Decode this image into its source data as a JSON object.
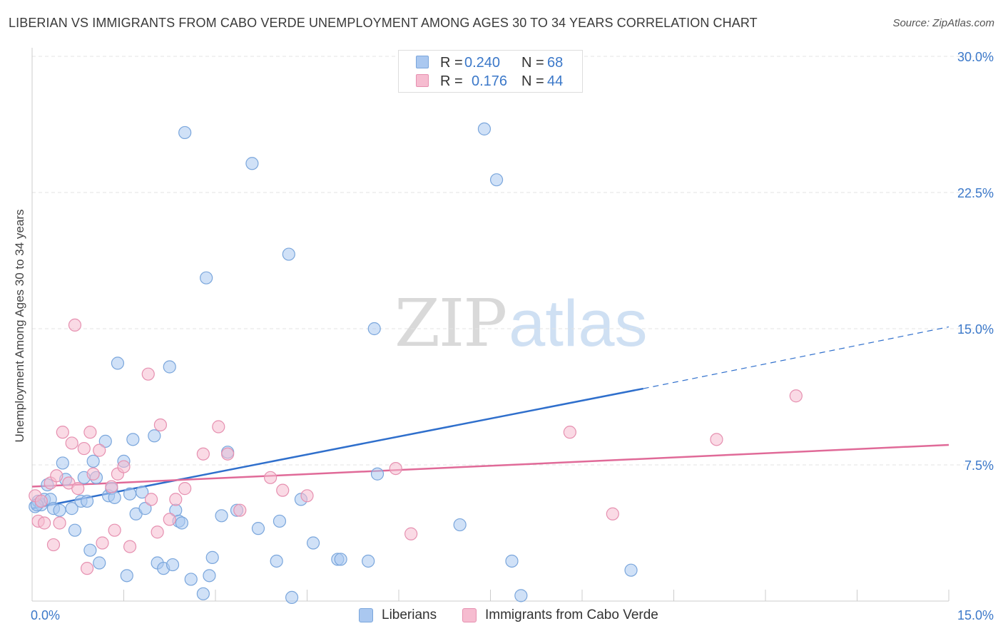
{
  "title": "LIBERIAN VS IMMIGRANTS FROM CABO VERDE UNEMPLOYMENT AMONG AGES 30 TO 34 YEARS CORRELATION CHART",
  "source": "Source: ZipAtlas.com",
  "watermark": {
    "zip": "ZIP",
    "atlas": "atlas"
  },
  "legend": {
    "r_label": "R =",
    "n_label": "N =",
    "rows": [
      {
        "r": "0.240",
        "n": "68"
      },
      {
        "r": "0.176",
        "n": "44"
      }
    ]
  },
  "colors": {
    "blue_fill": "#aac8f0",
    "blue_stroke": "#7aa6dc",
    "blue_line": "#2f6fcc",
    "pink_fill": "#f6bcd0",
    "pink_stroke": "#e690b0",
    "pink_line": "#e06a98",
    "axis_text": "#3b78c9",
    "grid": "#e3e3e3"
  },
  "chart_data": {
    "type": "scatter",
    "title": "LIBERIAN VS IMMIGRANTS FROM CABO VERDE UNEMPLOYMENT AMONG AGES 30 TO 34 YEARS CORRELATION CHART",
    "xlabel": "",
    "ylabel": "Unemployment Among Ages 30 to 34 years",
    "xlim": [
      0,
      15
    ],
    "ylim": [
      0,
      30
    ],
    "x_tick_labels": [
      "0.0%",
      "15.0%"
    ],
    "y_ticks": [
      7.5,
      15.0,
      22.5,
      30.0
    ],
    "y_tick_labels": [
      "7.5%",
      "15.0%",
      "22.5%",
      "30.0%"
    ],
    "grid": "horizontal dashed",
    "legend_position": "top-center",
    "series": [
      {
        "name": "Liberians",
        "R": 0.24,
        "N": 68,
        "trend": {
          "x0": 0,
          "y0": 5.1,
          "x1": 10.0,
          "y1": 11.7,
          "dashed_to_x": 15.0,
          "dashed_to_y": 15.1
        },
        "points": [
          [
            0.05,
            5.2
          ],
          [
            0.1,
            5.5
          ],
          [
            0.15,
            5.3
          ],
          [
            0.2,
            5.6
          ],
          [
            0.25,
            6.4
          ],
          [
            0.3,
            5.6
          ],
          [
            0.35,
            5.1
          ],
          [
            0.45,
            5.0
          ],
          [
            0.5,
            7.6
          ],
          [
            0.55,
            6.7
          ],
          [
            0.65,
            5.1
          ],
          [
            0.7,
            3.9
          ],
          [
            0.8,
            5.5
          ],
          [
            0.85,
            6.8
          ],
          [
            0.9,
            5.5
          ],
          [
            0.95,
            2.8
          ],
          [
            1.0,
            7.7
          ],
          [
            1.05,
            6.8
          ],
          [
            1.1,
            2.1
          ],
          [
            1.2,
            8.8
          ],
          [
            1.25,
            5.8
          ],
          [
            1.3,
            6.2
          ],
          [
            1.35,
            5.7
          ],
          [
            1.4,
            13.1
          ],
          [
            1.5,
            7.7
          ],
          [
            1.55,
            1.4
          ],
          [
            1.65,
            8.9
          ],
          [
            1.7,
            4.8
          ],
          [
            1.8,
            6.0
          ],
          [
            1.85,
            5.1
          ],
          [
            2.0,
            9.1
          ],
          [
            2.05,
            2.1
          ],
          [
            2.15,
            1.8
          ],
          [
            2.25,
            12.9
          ],
          [
            2.3,
            2.0
          ],
          [
            2.35,
            5.0
          ],
          [
            2.4,
            4.4
          ],
          [
            2.45,
            4.3
          ],
          [
            2.5,
            25.8
          ],
          [
            2.6,
            1.2
          ],
          [
            2.8,
            0.4
          ],
          [
            2.85,
            17.8
          ],
          [
            2.9,
            1.4
          ],
          [
            2.95,
            2.4
          ],
          [
            3.1,
            4.7
          ],
          [
            3.2,
            8.2
          ],
          [
            3.35,
            5.0
          ],
          [
            3.6,
            24.1
          ],
          [
            3.7,
            4.0
          ],
          [
            4.0,
            2.2
          ],
          [
            4.05,
            4.4
          ],
          [
            4.2,
            19.1
          ],
          [
            4.25,
            0.2
          ],
          [
            4.4,
            5.6
          ],
          [
            4.6,
            3.2
          ],
          [
            5.0,
            2.3
          ],
          [
            5.05,
            2.3
          ],
          [
            5.5,
            2.2
          ],
          [
            5.6,
            15.0
          ],
          [
            5.65,
            7.0
          ],
          [
            7.0,
            4.2
          ],
          [
            7.4,
            26.0
          ],
          [
            7.6,
            23.2
          ],
          [
            7.85,
            2.2
          ],
          [
            8.0,
            0.3
          ],
          [
            9.8,
            1.7
          ],
          [
            0.08,
            5.3
          ],
          [
            1.6,
            5.9
          ]
        ]
      },
      {
        "name": "Immigrants from Cabo Verde",
        "R": 0.176,
        "N": 44,
        "trend": {
          "x0": 0,
          "y0": 6.3,
          "x1": 15.0,
          "y1": 8.6
        },
        "points": [
          [
            0.05,
            5.8
          ],
          [
            0.1,
            4.4
          ],
          [
            0.15,
            5.5
          ],
          [
            0.2,
            4.3
          ],
          [
            0.3,
            6.5
          ],
          [
            0.35,
            3.1
          ],
          [
            0.4,
            6.9
          ],
          [
            0.45,
            4.3
          ],
          [
            0.5,
            9.3
          ],
          [
            0.6,
            6.5
          ],
          [
            0.65,
            8.7
          ],
          [
            0.7,
            15.2
          ],
          [
            0.75,
            6.2
          ],
          [
            0.85,
            8.4
          ],
          [
            0.9,
            1.8
          ],
          [
            0.95,
            9.3
          ],
          [
            1.0,
            7.0
          ],
          [
            1.1,
            8.3
          ],
          [
            1.15,
            3.2
          ],
          [
            1.3,
            6.3
          ],
          [
            1.35,
            3.9
          ],
          [
            1.4,
            7.0
          ],
          [
            1.5,
            7.4
          ],
          [
            1.6,
            3.0
          ],
          [
            1.9,
            12.5
          ],
          [
            1.95,
            5.6
          ],
          [
            2.05,
            3.8
          ],
          [
            2.1,
            9.7
          ],
          [
            2.25,
            4.5
          ],
          [
            2.35,
            5.6
          ],
          [
            2.5,
            6.2
          ],
          [
            2.8,
            8.1
          ],
          [
            3.05,
            9.6
          ],
          [
            3.2,
            8.1
          ],
          [
            3.4,
            5.0
          ],
          [
            3.9,
            6.8
          ],
          [
            4.1,
            6.1
          ],
          [
            4.5,
            5.8
          ],
          [
            5.95,
            7.3
          ],
          [
            6.2,
            3.7
          ],
          [
            8.8,
            9.3
          ],
          [
            9.5,
            4.8
          ],
          [
            11.2,
            8.9
          ],
          [
            12.5,
            11.3
          ]
        ]
      }
    ]
  },
  "bottom_legend": [
    "Liberians",
    "Immigrants from Cabo Verde"
  ]
}
